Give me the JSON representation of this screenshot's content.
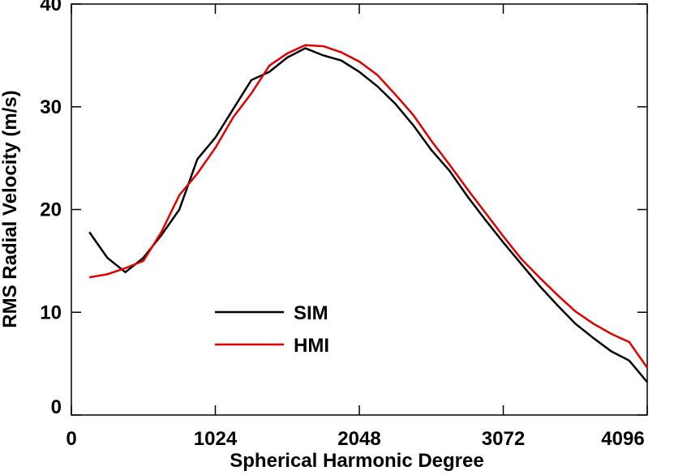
{
  "chart_data": {
    "type": "line",
    "xlabel": "Spherical Harmonic Degree",
    "ylabel": "RMS Radial Velocity (m/s)",
    "x": [
      128,
      256,
      384,
      512,
      640,
      768,
      896,
      1024,
      1152,
      1280,
      1408,
      1536,
      1664,
      1792,
      1920,
      2048,
      2176,
      2304,
      2432,
      2560,
      2688,
      2816,
      2944,
      3072,
      3200,
      3328,
      3456,
      3584,
      3712,
      3840,
      3968,
      4096
    ],
    "series": [
      {
        "name": "SIM",
        "color": "#000000",
        "values": [
          17.8,
          15.3,
          13.9,
          15.3,
          17.5,
          20.0,
          24.9,
          27.0,
          29.8,
          32.6,
          33.4,
          34.8,
          35.7,
          35.0,
          34.5,
          33.4,
          32.0,
          30.3,
          28.2,
          25.8,
          23.8,
          21.3,
          19.0,
          16.8,
          14.7,
          12.6,
          10.7,
          8.9,
          7.5,
          6.2,
          5.3,
          3.2
        ]
      },
      {
        "name": "HMI",
        "color": "#e00000",
        "values": [
          13.4,
          13.7,
          14.3,
          15.0,
          17.8,
          21.4,
          23.5,
          26.0,
          29.0,
          31.3,
          34.0,
          35.2,
          36.0,
          35.9,
          35.3,
          34.4,
          33.1,
          31.2,
          29.2,
          26.7,
          24.4,
          22.0,
          19.7,
          17.4,
          15.2,
          13.4,
          11.7,
          10.1,
          8.9,
          7.9,
          7.1,
          4.6
        ]
      }
    ],
    "xlim": [
      0,
      4096
    ],
    "xticks": [
      0,
      1024,
      2048,
      3072,
      4096
    ],
    "ylim": [
      0,
      40
    ],
    "yticks": [
      0,
      10,
      20,
      30,
      40
    ]
  }
}
